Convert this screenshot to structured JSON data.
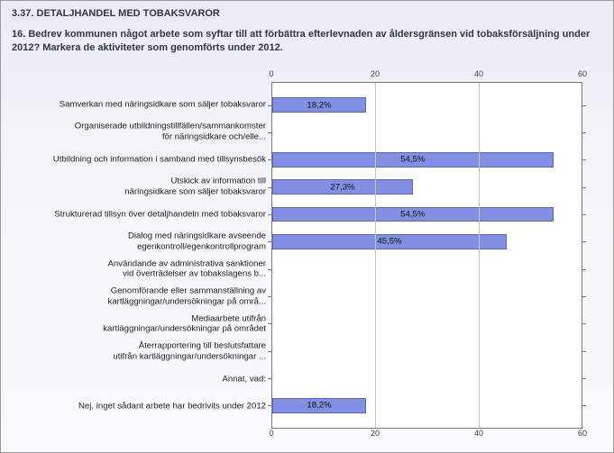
{
  "section_title": "3.37. DETALJHANDEL MED TOBAKSVAROR",
  "question": "16. Bedrev kommunen något arbete som syftar till att förbättra efterlevnaden av åldersgränsen vid tobaksförsäljning under 2012? Markera de aktiviteter som genomförts under 2012.",
  "chart": {
    "type": "bar-horizontal",
    "xlim": [
      0,
      60
    ],
    "xticks": [
      0,
      20,
      40,
      60
    ],
    "grid_color": "#c4c4c4",
    "bar_color": "#8290e2",
    "bar_border_color": "#5a66b5",
    "background_color": "#fefeff",
    "axis_color": "#7a7a7a",
    "label_fontsize": 9.6,
    "categories": [
      {
        "label": "Samverkan med näringsidkare som säljer tobaksvaror",
        "value": 18.2,
        "value_label": "18,2%"
      },
      {
        "label": "Organiserade utbildningstillfällen/sammankomster\nför näringsidkare och/elle...",
        "value": 0,
        "value_label": ""
      },
      {
        "label": "Utbildning och information i samband med tillsynsbesök",
        "value": 54.5,
        "value_label": "54,5%"
      },
      {
        "label": "Utskick av information till\nnäringsidkare som säljer tobaksvaror",
        "value": 27.3,
        "value_label": "27,3%"
      },
      {
        "label": "Strukturerad tillsyn över detaljhandeln med tobaksvaror",
        "value": 54.5,
        "value_label": "54,5%"
      },
      {
        "label": "Dialog med näringsidkare avseende\negenkontroll/egenkontrollprogram",
        "value": 45.5,
        "value_label": "45,5%"
      },
      {
        "label": "Användande av administrativa sanktioner\nvid överträdelser av tobakslagens b...",
        "value": 0,
        "value_label": ""
      },
      {
        "label": "Genomförande eller sammanställning av\nkartläggningar/undersökningar på områ...",
        "value": 0,
        "value_label": ""
      },
      {
        "label": "Mediaarbete utifrån\nkartläggningar/undersökningar på området",
        "value": 0,
        "value_label": ""
      },
      {
        "label": "Återrapportering till beslutsfattare\nutifrån kartläggningar/undersökningar ...",
        "value": 0,
        "value_label": ""
      },
      {
        "label": "Annat, vad:",
        "value": 0,
        "value_label": ""
      },
      {
        "label": "Nej, inget sådant arbete har bedrivits under 2012",
        "value": 18.2,
        "value_label": "18,2%"
      }
    ]
  }
}
